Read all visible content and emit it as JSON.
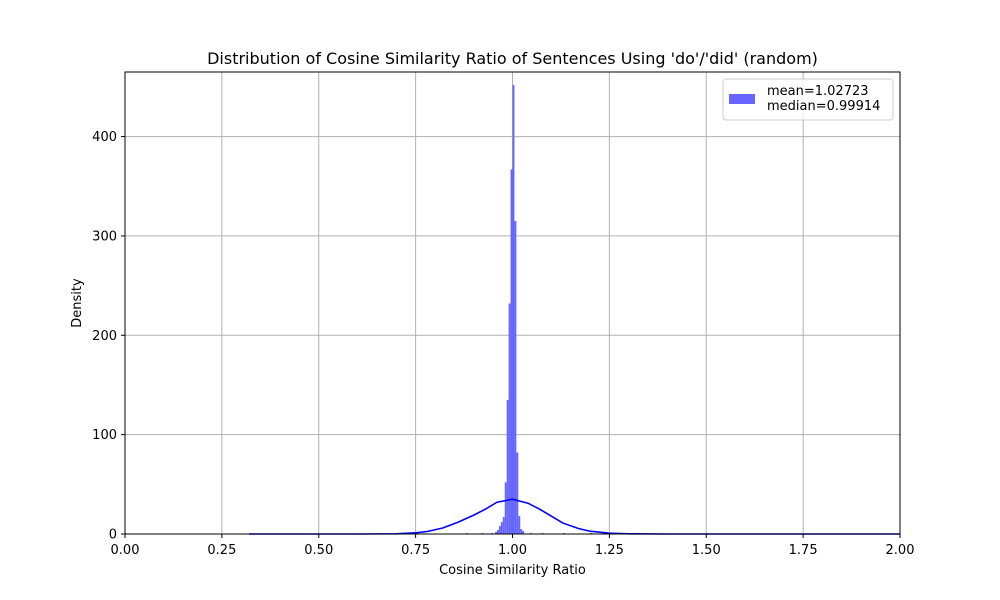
{
  "chart_data": {
    "type": "bar",
    "title": "Distribution of Cosine Similarity Ratio of Sentences Using 'do'/'did' (random)",
    "xlabel": "Cosine Similarity Ratio",
    "ylabel": "Density",
    "xlim": [
      0.0,
      2.0
    ],
    "ylim": [
      0,
      465
    ],
    "grid": true,
    "legend_position": "top-right",
    "xticks": [
      0.0,
      0.25,
      0.5,
      0.75,
      1.0,
      1.25,
      1.5,
      1.75,
      2.0
    ],
    "xtick_labels": [
      "0.00",
      "0.25",
      "0.50",
      "0.75",
      "1.00",
      "1.25",
      "1.50",
      "1.75",
      "2.00"
    ],
    "yticks": [
      0,
      100,
      200,
      300,
      400
    ],
    "ytick_labels": [
      "0",
      "100",
      "200",
      "300",
      "400"
    ],
    "legend_label": "mean=1.02723\nmedian=0.99914",
    "colors": {
      "histogram": "#6666ff",
      "kde": "#0000ff",
      "grid": "#b0b0b0"
    },
    "histogram": {
      "name": "mean=1.02723\nmedian=0.99914",
      "bins": [
        {
          "x0": 0.88,
          "x1": 0.885,
          "y": 1
        },
        {
          "x0": 0.92,
          "x1": 0.925,
          "y": 1
        },
        {
          "x0": 0.945,
          "x1": 0.95,
          "y": 1
        },
        {
          "x0": 0.955,
          "x1": 0.96,
          "y": 2
        },
        {
          "x0": 0.96,
          "x1": 0.965,
          "y": 4
        },
        {
          "x0": 0.965,
          "x1": 0.97,
          "y": 8
        },
        {
          "x0": 0.97,
          "x1": 0.975,
          "y": 12
        },
        {
          "x0": 0.975,
          "x1": 0.98,
          "y": 17
        },
        {
          "x0": 0.98,
          "x1": 0.985,
          "y": 52
        },
        {
          "x0": 0.985,
          "x1": 0.99,
          "y": 135
        },
        {
          "x0": 0.99,
          "x1": 0.995,
          "y": 232
        },
        {
          "x0": 0.995,
          "x1": 1.0,
          "y": 367
        },
        {
          "x0": 1.0,
          "x1": 1.005,
          "y": 452
        },
        {
          "x0": 1.005,
          "x1": 1.01,
          "y": 315
        },
        {
          "x0": 1.01,
          "x1": 1.015,
          "y": 82
        },
        {
          "x0": 1.015,
          "x1": 1.02,
          "y": 18
        },
        {
          "x0": 1.02,
          "x1": 1.025,
          "y": 5
        },
        {
          "x0": 1.025,
          "x1": 1.03,
          "y": 3
        },
        {
          "x0": 1.045,
          "x1": 1.05,
          "y": 1
        },
        {
          "x0": 1.075,
          "x1": 1.08,
          "y": 1
        },
        {
          "x0": 1.13,
          "x1": 1.135,
          "y": 1
        },
        {
          "x0": 1.2,
          "x1": 1.205,
          "y": 1
        }
      ]
    },
    "kde": {
      "x": [
        0.32,
        0.4,
        0.5,
        0.6,
        0.7,
        0.75,
        0.78,
        0.82,
        0.86,
        0.9,
        0.93,
        0.96,
        1.0,
        1.04,
        1.07,
        1.1,
        1.13,
        1.17,
        1.2,
        1.25,
        1.3,
        1.4,
        1.5,
        1.6,
        1.75,
        1.9,
        2.0
      ],
      "y": [
        0,
        0,
        0,
        0,
        0.2,
        1.2,
        2.5,
        6,
        12,
        19,
        25,
        32,
        35,
        31,
        25,
        18,
        11,
        5.5,
        2.8,
        0.8,
        0.2,
        0,
        0,
        0,
        0,
        0,
        0
      ]
    }
  }
}
